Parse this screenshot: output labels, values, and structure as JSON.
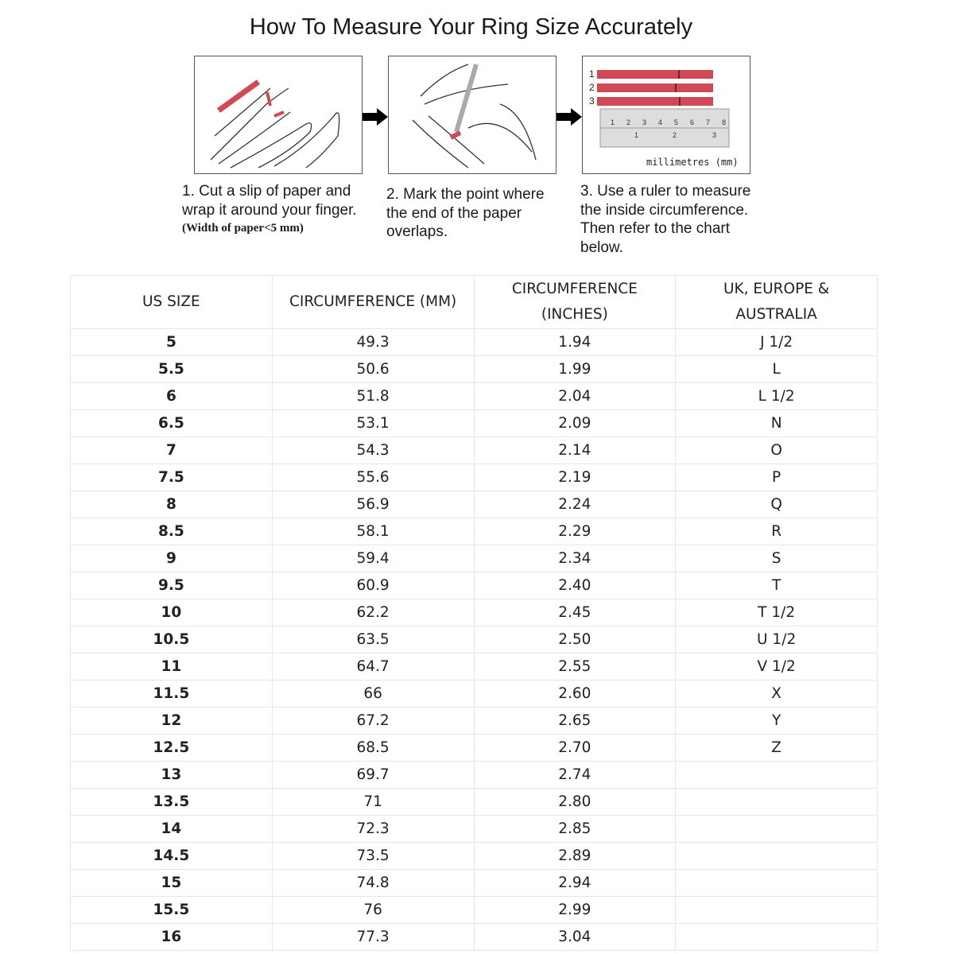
{
  "title": "How To Measure Your Ring Size Accurately",
  "steps": [
    {
      "text": "1. Cut a slip of paper and wrap it around your finger.",
      "note": "(Width of paper<5 mm)"
    },
    {
      "text": "2. Mark the point where the end of the paper overlaps."
    },
    {
      "text": "3. Use a ruler to measure the inside circumference. Then refer to the chart below."
    }
  ],
  "ruler": {
    "strip_labels": [
      "1",
      "2",
      "3"
    ],
    "unit_label": "millimetres (mm)"
  },
  "accent_color": "#d04a55",
  "table": {
    "headers": [
      "US SIZE",
      "CIRCUMFERENCE (MM)",
      "CIRCUMFERENCE (INCHES)",
      "UK, EUROPE & AUSTRALIA"
    ],
    "rows": [
      [
        "5",
        "49.3",
        "1.94",
        "J 1/2"
      ],
      [
        "5.5",
        "50.6",
        "1.99",
        "L"
      ],
      [
        "6",
        "51.8",
        "2.04",
        "L 1/2"
      ],
      [
        "6.5",
        "53.1",
        "2.09",
        "N"
      ],
      [
        "7",
        "54.3",
        "2.14",
        "O"
      ],
      [
        "7.5",
        "55.6",
        "2.19",
        "P"
      ],
      [
        "8",
        "56.9",
        "2.24",
        "Q"
      ],
      [
        "8.5",
        "58.1",
        "2.29",
        "R"
      ],
      [
        "9",
        "59.4",
        "2.34",
        "S"
      ],
      [
        "9.5",
        "60.9",
        "2.40",
        "T"
      ],
      [
        "10",
        "62.2",
        "2.45",
        "T 1/2"
      ],
      [
        "10.5",
        "63.5",
        "2.50",
        "U 1/2"
      ],
      [
        "11",
        "64.7",
        "2.55",
        "V 1/2"
      ],
      [
        "11.5",
        "66",
        "2.60",
        "X"
      ],
      [
        "12",
        "67.2",
        "2.65",
        "Y"
      ],
      [
        "12.5",
        "68.5",
        "2.70",
        "Z"
      ],
      [
        "13",
        "69.7",
        "2.74",
        ""
      ],
      [
        "13.5",
        "71",
        "2.80",
        ""
      ],
      [
        "14",
        "72.3",
        "2.85",
        ""
      ],
      [
        "14.5",
        "73.5",
        "2.89",
        ""
      ],
      [
        "15",
        "74.8",
        "2.94",
        ""
      ],
      [
        "15.5",
        "76",
        "2.99",
        ""
      ],
      [
        "16",
        "77.3",
        "3.04",
        ""
      ]
    ]
  }
}
